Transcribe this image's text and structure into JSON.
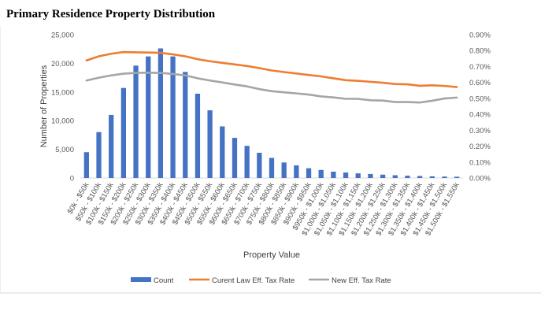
{
  "colors": {
    "count": "#4472C4",
    "current": "#ED7D31",
    "new": "#A5A5A5",
    "axis": "#D9D9D9",
    "text": "#595959"
  },
  "chart_data": {
    "type": "bar",
    "title": "Primary Residence Property Distribution",
    "xlabel": "Property Value",
    "ylabel": "Number of Properties",
    "ylim": [
      0,
      25000
    ],
    "yticks": [
      "25,000",
      "20,000",
      "15,000",
      "10,000",
      "5,000",
      "0"
    ],
    "y2lim": [
      0,
      0.009
    ],
    "y2ticks": [
      "0.90%",
      "0.80%",
      "0.70%",
      "0.60%",
      "0.50%",
      "0.40%",
      "0.30%",
      "0.20%",
      "0.10%",
      "0.00%"
    ],
    "legend_position": "bottom",
    "categories": [
      "$0k - $50k",
      "$50k - $100k",
      "$100k - $150k",
      "$150k - $200k",
      "$200k - $250k",
      "$250k - $300k",
      "$300k - $350k",
      "$350k - $400k",
      "$400k - $450k",
      "$450k - $500k",
      "$500k - $550k",
      "$550k - $600k",
      "$600k - $650k",
      "$650k - $700k",
      "$700k - $750k",
      "$750k - $800k",
      "$800k - $850k",
      "$850k - $900k",
      "$900k - $950k",
      "$950k - $1,000k",
      "$1,000k - $1,050k",
      "$1,050k - $1,100k",
      "$1,100k - $1,150k",
      "$1,150k - $1,200k",
      "$1,200k - $1,250k",
      "$1,250k - $1,300k",
      "$1,300k - $1,350k",
      "$1,350k - $1,400k",
      "$1,400k - $1,450k",
      "$1,450k - $1,500k",
      "$1,500k - $1,550k"
    ],
    "series": [
      {
        "name": "Count",
        "type": "bar",
        "axis": "left",
        "values": [
          4500,
          8000,
          11000,
          15700,
          19600,
          21200,
          22600,
          21200,
          18500,
          14700,
          11800,
          9000,
          7000,
          5600,
          4400,
          3500,
          2700,
          2200,
          1700,
          1400,
          1100,
          950,
          800,
          700,
          580,
          480,
          400,
          340,
          290,
          250,
          220
        ]
      },
      {
        "name": "Curent Law Eff. Tax Rate",
        "type": "line",
        "axis": "right",
        "values": [
          0.00738,
          0.00764,
          0.0078,
          0.00791,
          0.00789,
          0.00788,
          0.00786,
          0.00776,
          0.00764,
          0.00746,
          0.00733,
          0.00723,
          0.00713,
          0.00703,
          0.0069,
          0.00675,
          0.00665,
          0.00656,
          0.00647,
          0.00638,
          0.00626,
          0.00614,
          0.0061,
          0.00604,
          0.00598,
          0.0059,
          0.00588,
          0.00579,
          0.00582,
          0.00578,
          0.00571
        ]
      },
      {
        "name": "New Eff. Tax Rate",
        "type": "line",
        "axis": "right",
        "values": [
          0.00612,
          0.0063,
          0.00644,
          0.00655,
          0.0066,
          0.00661,
          0.0066,
          0.00653,
          0.00644,
          0.00626,
          0.00612,
          0.006,
          0.00587,
          0.00575,
          0.00558,
          0.00545,
          0.00538,
          0.00531,
          0.00524,
          0.00512,
          0.00506,
          0.00497,
          0.00497,
          0.00488,
          0.00486,
          0.00477,
          0.00477,
          0.00474,
          0.00485,
          0.00499,
          0.00505
        ]
      }
    ]
  }
}
